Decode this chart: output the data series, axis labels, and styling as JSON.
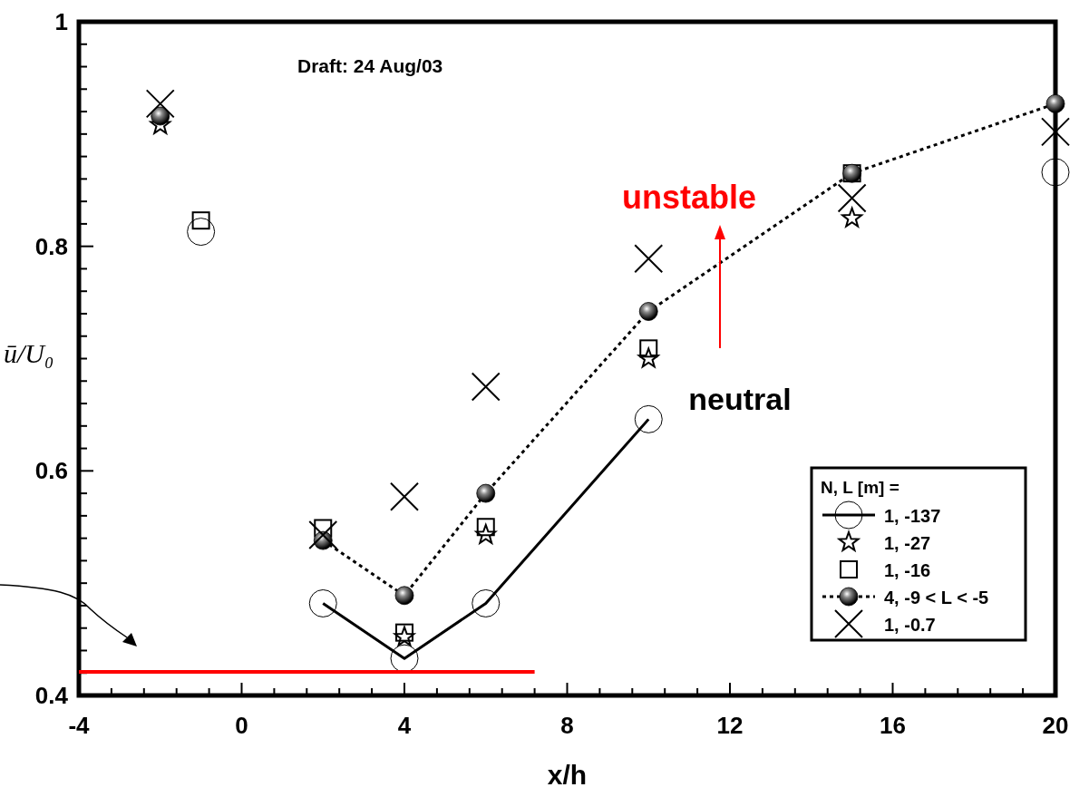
{
  "chart_data": {
    "type": "scatter",
    "ylabel": "ū/U₀",
    "xlabel": "x/h",
    "legend_title": "N, L [m]  =",
    "legend": "bottom right",
    "annotations": [
      "Draft: 24 Aug/03",
      "unstable",
      "neutral"
    ],
    "xlim": [
      -4,
      20
    ],
    "ylim": [
      0.4,
      1
    ],
    "xticks": [
      -4,
      {
        "value": -3.2,
        "label": null
      },
      {
        "value": -2.4,
        "label": null
      },
      {
        "value": -1.6,
        "label": null
      },
      {
        "value": -0.8,
        "label": null
      },
      0,
      {
        "value": 0.8,
        "label": null
      },
      {
        "value": 1.6,
        "label": null
      },
      {
        "value": 2.4,
        "label": null
      },
      {
        "value": 3.2,
        "label": null
      },
      4,
      {
        "value": 4.8,
        "label": null
      },
      {
        "value": 5.6,
        "label": null
      },
      {
        "value": 6.4,
        "label": null
      },
      {
        "value": 7.2,
        "label": null
      },
      8,
      {
        "value": 8.8,
        "label": null
      },
      {
        "value": 9.6,
        "label": null
      },
      {
        "value": 10.4,
        "label": null
      },
      {
        "value": 11.2,
        "label": null
      },
      12,
      {
        "value": 12.8,
        "label": null
      },
      {
        "value": 13.6,
        "label": null
      },
      {
        "value": 14.4,
        "label": null
      },
      {
        "value": 15.2,
        "label": null
      },
      16,
      {
        "value": 16.8,
        "label": null
      },
      {
        "value": 17.6,
        "label": null
      },
      {
        "value": 18.4,
        "label": null
      },
      {
        "value": 19.2,
        "label": null
      },
      20
    ],
    "yticks": [
      0.4,
      {
        "value": 0.42,
        "label": null
      },
      {
        "value": 0.44,
        "label": null
      },
      {
        "value": 0.46,
        "label": null
      },
      {
        "value": 0.48,
        "label": null
      },
      {
        "value": 0.5,
        "label": null
      },
      {
        "value": 0.52,
        "label": null
      },
      {
        "value": 0.54,
        "label": null
      },
      {
        "value": 0.56,
        "label": null
      },
      {
        "value": 0.58,
        "label": null
      },
      0.6,
      {
        "value": 0.62,
        "label": null
      },
      {
        "value": 0.64,
        "label": null
      },
      {
        "value": 0.66,
        "label": null
      },
      {
        "value": 0.68,
        "label": null
      },
      {
        "value": 0.7,
        "label": null
      },
      {
        "value": 0.72,
        "label": null
      },
      {
        "value": 0.74,
        "label": null
      },
      {
        "value": 0.76,
        "label": null
      },
      {
        "value": 0.78,
        "label": null
      },
      0.8,
      {
        "value": 0.82,
        "label": null
      },
      {
        "value": 0.84,
        "label": null
      },
      {
        "value": 0.86,
        "label": null
      },
      {
        "value": 0.88,
        "label": null
      },
      {
        "value": 0.9,
        "label": null
      },
      {
        "value": 0.92,
        "label": null
      },
      {
        "value": 0.94,
        "label": null
      },
      {
        "value": 0.96,
        "label": null
      },
      {
        "value": 0.98,
        "label": null
      },
      1
    ],
    "series": [
      {
        "name": "1, -137",
        "type": "line",
        "marker": "circle",
        "line_style": "solid",
        "color": "#000000",
        "x": [
          -1,
          0,
          2,
          4,
          6,
          10,
          15,
          20
        ],
        "values": [
          0.813,
          null,
          0.482,
          0.433,
          0.482,
          0.646,
          null,
          0.866
        ]
      },
      {
        "name": "1, -27",
        "type": "scatter",
        "marker": "star",
        "color": "#000000",
        "x": [
          -2,
          2,
          4,
          6,
          10,
          15
        ],
        "values": [
          0.908,
          null,
          0.452,
          0.543,
          0.7,
          0.825
        ]
      },
      {
        "name": "1, -16",
        "type": "scatter",
        "marker": "square",
        "color": "#000000",
        "x": [
          -1,
          2,
          4,
          6,
          10,
          15
        ],
        "values": [
          0.823,
          0.549,
          0.456,
          0.55,
          0.709,
          0.865
        ]
      },
      {
        "name": "4, -9 < L < -5",
        "type": "line",
        "marker": "circle",
        "line_style": "dotted",
        "color": "#000000",
        "x": [
          -2,
          0,
          2,
          4,
          6,
          10,
          15,
          20
        ],
        "values": [
          0.916,
          null,
          0.538,
          0.489,
          0.58,
          0.742,
          0.865,
          0.927
        ]
      },
      {
        "name": "1, -0.7",
        "type": "scatter",
        "marker": "cross",
        "color": "#000000",
        "x": [
          -2,
          2,
          4,
          6,
          10,
          15,
          20
        ],
        "values": [
          0.927,
          0.543,
          0.577,
          0.675,
          0.789,
          0.843,
          0.902
        ]
      },
      {
        "type": "line",
        "marker": "none",
        "line_style": "solid",
        "color": "#ff0000",
        "x": [
          -4,
          7.2
        ],
        "values": [
          0.421,
          0.421
        ]
      }
    ]
  }
}
